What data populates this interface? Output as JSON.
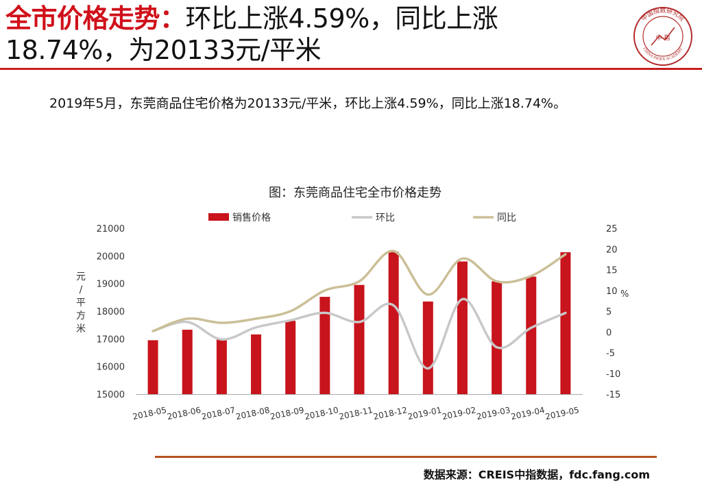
{
  "header": {
    "title_emphasis": "全市价格走势：",
    "title_rest": "环比上涨4.59%，同比上涨",
    "title_line2": "18.74%，为20133元/平米"
  },
  "logo": {
    "center_text": "中 指",
    "ring_text_top": "中国指数研究院",
    "ring_text_bottom": "CHINA INDEX ACADEMY"
  },
  "summary": "2019年5月，东莞商品住宅价格为20133元/平米，环比上涨4.59%，同比上涨18.74%。",
  "footer": {
    "source": "数据来源：CREIS中指数据，fdc.fang.com"
  },
  "colors": {
    "accent": "#d0101b",
    "bar": "#c8141c",
    "mom": "#c8c8c8",
    "yoy": "#cbbf97",
    "source_rule": "#b5521f"
  },
  "chart_data": {
    "type": "bar",
    "title": "图：东莞商品住宅全市价格走势",
    "categories": [
      "2018-05",
      "2018-06",
      "2018-07",
      "2018-08",
      "2018-09",
      "2018-10",
      "2018-11",
      "2018-12",
      "2019-01",
      "2019-02",
      "2019-03",
      "2019-04",
      "2019-05"
    ],
    "ylabel_left": "元/平方米",
    "ylabel_right": "%",
    "ylim_left": [
      15000,
      21000
    ],
    "yticks_left": [
      "21000",
      "20000",
      "19000",
      "18000",
      "17000",
      "16000",
      "15000"
    ],
    "ylim_right": [
      -15,
      25
    ],
    "yticks_right": [
      "25",
      "20",
      "15",
      "10",
      "5",
      "0",
      "-5",
      "-10",
      "-15"
    ],
    "grid": false,
    "legend_position": "top",
    "series": [
      {
        "name": "销售价格",
        "type": "bar",
        "axis": "left",
        "values": [
          16950,
          17330,
          16980,
          17160,
          17650,
          18520,
          18950,
          20150,
          18350,
          19800,
          19080,
          19250,
          20133
        ]
      },
      {
        "name": "环比",
        "type": "line",
        "axis": "right",
        "values": [
          0.2,
          2.4,
          -1.8,
          1.1,
          2.8,
          4.6,
          2.4,
          6.4,
          -8.8,
          7.9,
          -3.7,
          1.0,
          4.59
        ]
      },
      {
        "name": "同比",
        "type": "line",
        "axis": "right",
        "values": [
          0.2,
          3.2,
          2.2,
          3.2,
          5.0,
          10.0,
          12.2,
          19.5,
          9.0,
          17.7,
          12.2,
          13.5,
          18.74
        ]
      }
    ]
  }
}
